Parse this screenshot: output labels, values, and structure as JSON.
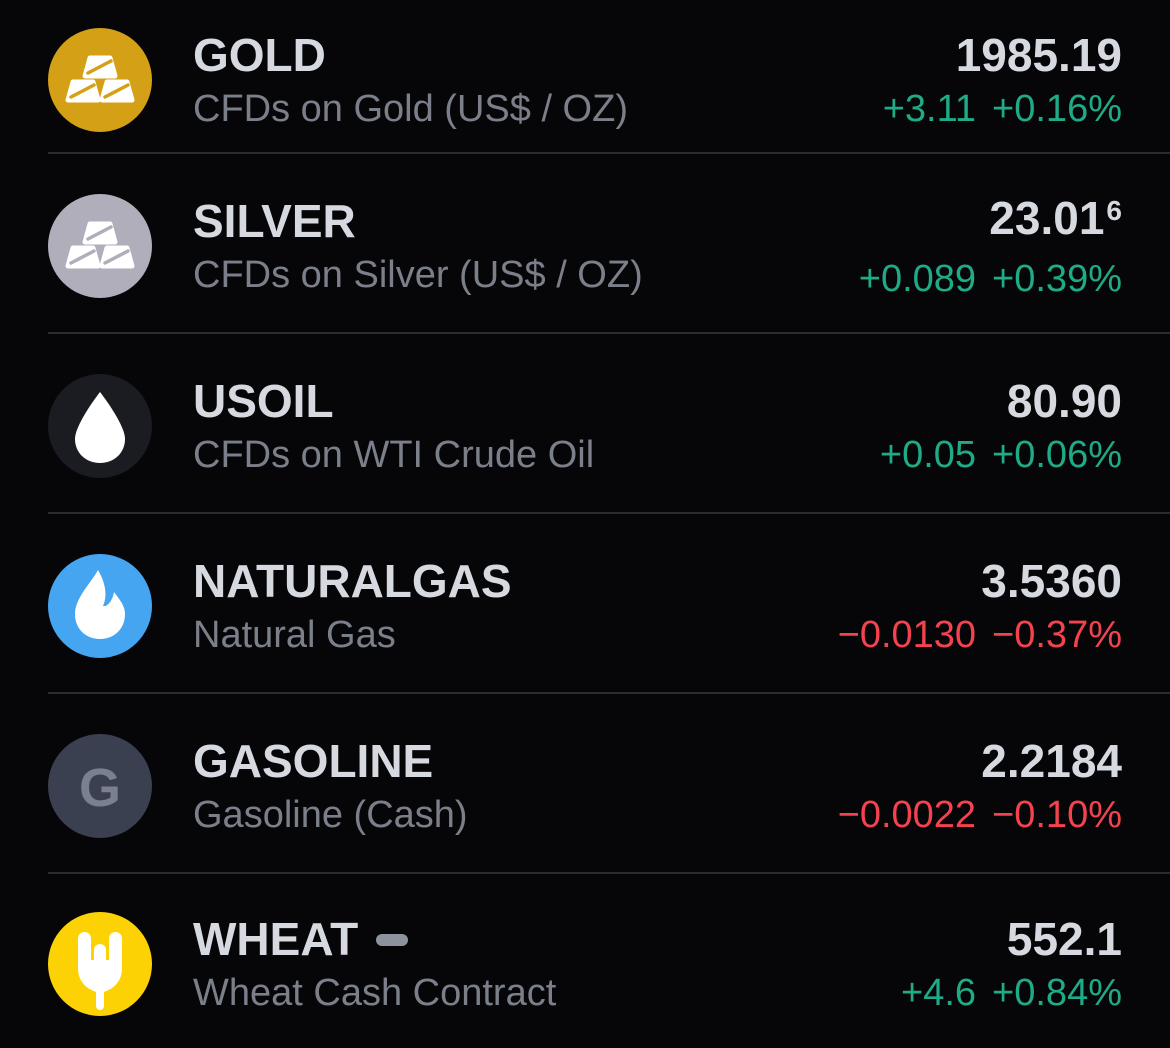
{
  "theme": {
    "background": "#060608",
    "separator": "#2a2c31",
    "text_primary": "#d6d9df",
    "text_secondary": "#7b7f8a",
    "up_color": "#1fab87",
    "down_color": "#f4424e"
  },
  "watchlist": {
    "rows": [
      {
        "symbol": "GOLD",
        "description": "CFDs on Gold (US$ / OZ)",
        "price": "1985.19",
        "price_sup": "",
        "change": "+3.11",
        "change_pct": "+0.16%",
        "direction": "up",
        "icon": "gold-bars-icon",
        "icon_bg": "#d4a015",
        "market_closed": false
      },
      {
        "symbol": "SILVER",
        "description": "CFDs on Silver (US$ / OZ)",
        "price": "23.01",
        "price_sup": "6",
        "change": "+0.089",
        "change_pct": "+0.39%",
        "direction": "up",
        "icon": "silver-bars-icon",
        "icon_bg": "#b1aebb",
        "market_closed": false
      },
      {
        "symbol": "USOIL",
        "description": "CFDs on WTI Crude Oil",
        "price": "80.90",
        "price_sup": "",
        "change": "+0.05",
        "change_pct": "+0.06%",
        "direction": "up",
        "icon": "oil-drop-icon",
        "icon_bg": "#1a1c21",
        "market_closed": false
      },
      {
        "symbol": "NATURALGAS",
        "description": "Natural Gas",
        "price": "3.5360",
        "price_sup": "",
        "change": "−0.0130",
        "change_pct": "−0.37%",
        "direction": "down",
        "icon": "flame-icon",
        "icon_bg": "#45a5f1",
        "market_closed": false
      },
      {
        "symbol": "GASOLINE",
        "description": "Gasoline (Cash)",
        "price": "2.2184",
        "price_sup": "",
        "change": "−0.0022",
        "change_pct": "−0.10%",
        "direction": "down",
        "icon": "letter-g-icon",
        "icon_letter": "G",
        "icon_bg": "#3b4050",
        "market_closed": false
      },
      {
        "symbol": "WHEAT",
        "description": "Wheat Cash Contract",
        "price": "552.1",
        "price_sup": "",
        "change": "+4.6",
        "change_pct": "+0.84%",
        "direction": "up",
        "icon": "wheat-icon",
        "icon_bg": "#fdd205",
        "market_closed": true
      }
    ]
  }
}
